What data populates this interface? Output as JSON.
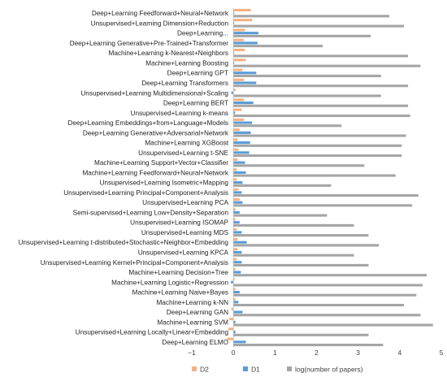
{
  "chart_data": {
    "type": "bar",
    "orientation": "horizontal",
    "categories": [
      "Deep+Learning Feedforward+Neural+Network",
      "Unsupervised+Learning Dimension+Reduction",
      "Deep+Learning...",
      "Deep+Learning Generative+Pre-Trained+Transformer",
      "Machine+Learning k-Nearest+Neighbors",
      "Machine+Learning Boosting",
      "Deep+Learning GPT",
      "Deep+Learning Transformers",
      "Unsupervised+Learning Multidimensional+Scaling",
      "Deep+Learning BERT",
      "Unsupervised+Learning k-means",
      "Deep+Learning Embeddings+from+Language+Models",
      "Deep+Learning Generative+Adversarial+Network",
      "Machine+Learning XGBoost",
      "Unsupervised+Learning t-SNE",
      "Machine+Learning Support+Vector+Classifier",
      "Machine+Learning Feedforward+Neural+Network",
      "Unsupervised+Learning Isometric+Mapping",
      "Unsupervised+Learning Principal+Component+Analysis",
      "Unsupervised+Learning PCA",
      "Semi-supervised+Learning Low+Density+Separation",
      "Unsupervised+Learning ISOMAP",
      "Unsupervised+Learning MDS",
      "Unsupervised+Learning t-distributed+Stochastic+Neighbor+Embedding",
      "Unsupervised+Learning KPCA",
      "Unsupervised+Learning Kernel+Principal+Component+Analysis",
      "Machine+Learning Decision+Tree",
      "Machine+Learning Logistic+Regression",
      "Machine+Learning Naive+Bayes",
      "Machine+Learning k-NN",
      "Deep+Learning GAN",
      "Machine+Learning SVM",
      "Unsupervised+Learning Locally+Linear+Embedding",
      "Deep+Learning ELMO"
    ],
    "series": [
      {
        "name": "D2",
        "color": "#F4B183",
        "values": [
          0.42,
          0.45,
          0.28,
          0.25,
          0.27,
          0.3,
          0.22,
          0.25,
          0.05,
          0.25,
          0.2,
          0.25,
          0.15,
          0.1,
          0.12,
          0.1,
          0.08,
          0.08,
          0.12,
          0.15,
          0.05,
          0.05,
          0.08,
          0.1,
          0.1,
          0.08,
          0.05,
          0.03,
          0.05,
          0.05,
          -0.05,
          -0.1,
          -0.12,
          -0.15
        ]
      },
      {
        "name": "D1",
        "color": "#5B9BD5",
        "values": [
          0.02,
          0.02,
          0.6,
          0.58,
          0.02,
          0.02,
          0.55,
          0.55,
          -0.05,
          0.48,
          0.04,
          0.45,
          0.42,
          0.4,
          0.38,
          0.28,
          0.3,
          0.22,
          0.2,
          0.22,
          0.15,
          0.15,
          0.2,
          0.32,
          0.2,
          0.2,
          0.18,
          -0.06,
          0.15,
          0.12,
          0.22,
          0.05,
          0.05,
          0.3
        ]
      },
      {
        "name": "log(number of papers)",
        "color": "#A5A5A5",
        "values": [
          3.75,
          4.1,
          3.3,
          2.15,
          4.2,
          4.5,
          3.55,
          4.2,
          3.55,
          4.2,
          4.25,
          2.6,
          4.15,
          4.05,
          4.05,
          3.15,
          3.9,
          2.35,
          4.45,
          4.3,
          2.25,
          2.9,
          3.25,
          3.5,
          2.9,
          3.25,
          4.65,
          4.55,
          4.4,
          4.1,
          4.5,
          4.8,
          3.25,
          3.6
        ]
      }
    ],
    "xlim": [
      -1,
      5
    ],
    "xticks": [
      "−1",
      "0",
      "1",
      "2",
      "3",
      "4",
      "5"
    ],
    "grid": false,
    "legend_position": "bottom"
  }
}
